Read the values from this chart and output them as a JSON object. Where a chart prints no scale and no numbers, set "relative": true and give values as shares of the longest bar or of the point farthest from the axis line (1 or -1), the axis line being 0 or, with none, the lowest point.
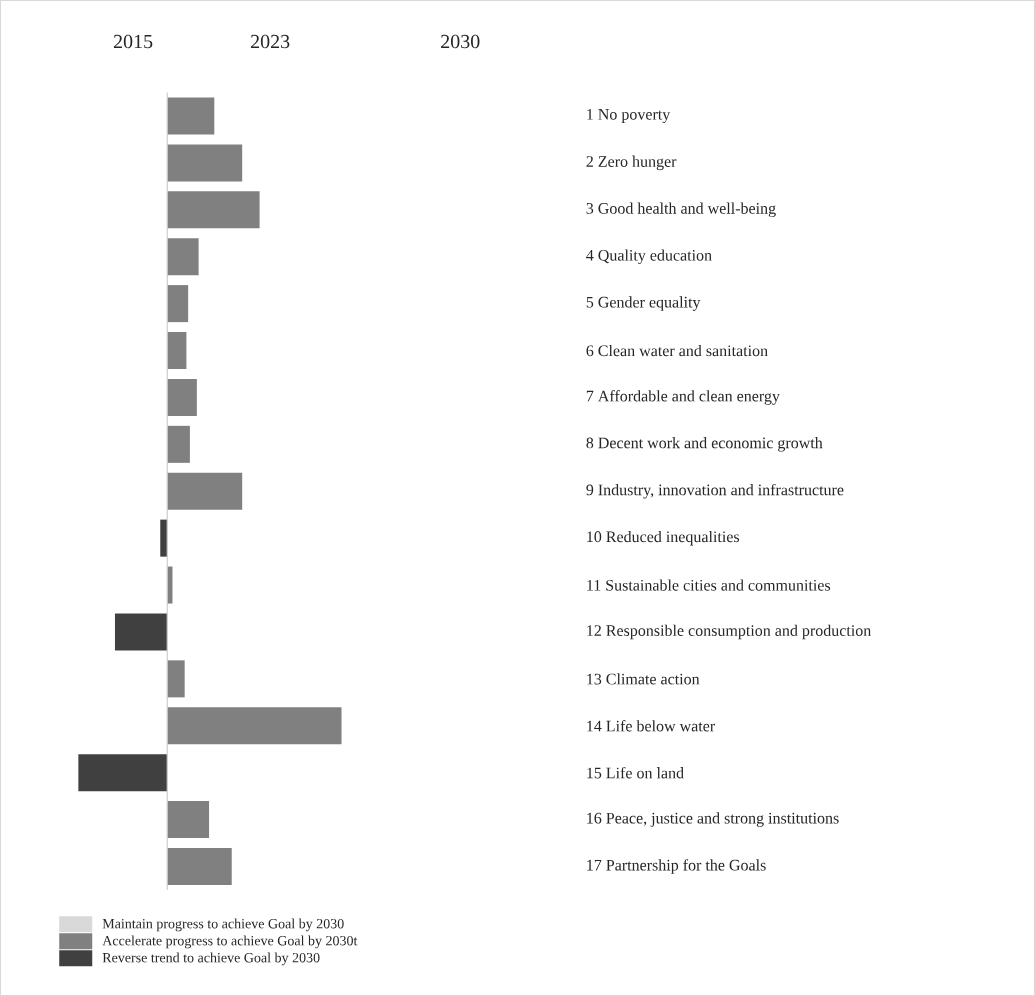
{
  "chart_data": {
    "type": "bar",
    "orientation": "horizontal",
    "relative": true,
    "legend": "bottom",
    "annotations": [
      "2015",
      "2023",
      "2030"
    ],
    "categories": [
      "1  No poverty",
      "2  Zero hunger",
      "3  Good health and well-being",
      "4  Quality education",
      "5  Gender equality",
      "6  Clean water and sanitation",
      "7  Affordable and clean energy",
      "8  Decent work and economic growth",
      "9  Industry, innovation and infrastructure",
      "10  Reduced inequalities",
      "11  Sustainable cities and communities",
      "12  Responsible consumption and production",
      "13  Climate action",
      "14  Life below water",
      "15  Life on land",
      "16  Peace, justice and strong institutions",
      "17  Partnership for the Goals"
    ],
    "series": [
      {
        "name": "Maintain progress to achieve Goal by 2030",
        "color": "#d9d9d9",
        "values": [
          null,
          null,
          null,
          null,
          null,
          null,
          null,
          null,
          null,
          null,
          null,
          null,
          null,
          null,
          null,
          null,
          null
        ]
      },
      {
        "name": "Accelerate progress to achieve Goal by 2030t",
        "color": "#808080",
        "values": [
          0.27,
          0.43,
          0.53,
          0.18,
          null,
          0.11,
          0.17,
          0.13,
          0.43,
          null,
          null,
          null,
          null,
          null,
          null,
          null,
          0.37
        ]
      },
      {
        "name": "Reverse trend to achieve Goal by 2030",
        "color": "#404040",
        "values": [
          null,
          null,
          null,
          null,
          null,
          null,
          null,
          null,
          null,
          -0.04,
          null,
          null,
          null,
          null,
          -0.51,
          null,
          null
        ]
      },
      {
        "color": "#808080",
        "values": [
          null,
          null,
          null,
          null,
          0.12,
          null,
          null,
          null,
          null,
          null,
          0.03,
          null,
          0.1,
          1,
          null,
          0.24,
          null
        ]
      },
      {
        "color": "#404040",
        "values": [
          null,
          null,
          null,
          null,
          null,
          null,
          null,
          null,
          null,
          null,
          null,
          -0.3,
          null,
          null,
          null,
          null,
          null
        ]
      }
    ]
  }
}
